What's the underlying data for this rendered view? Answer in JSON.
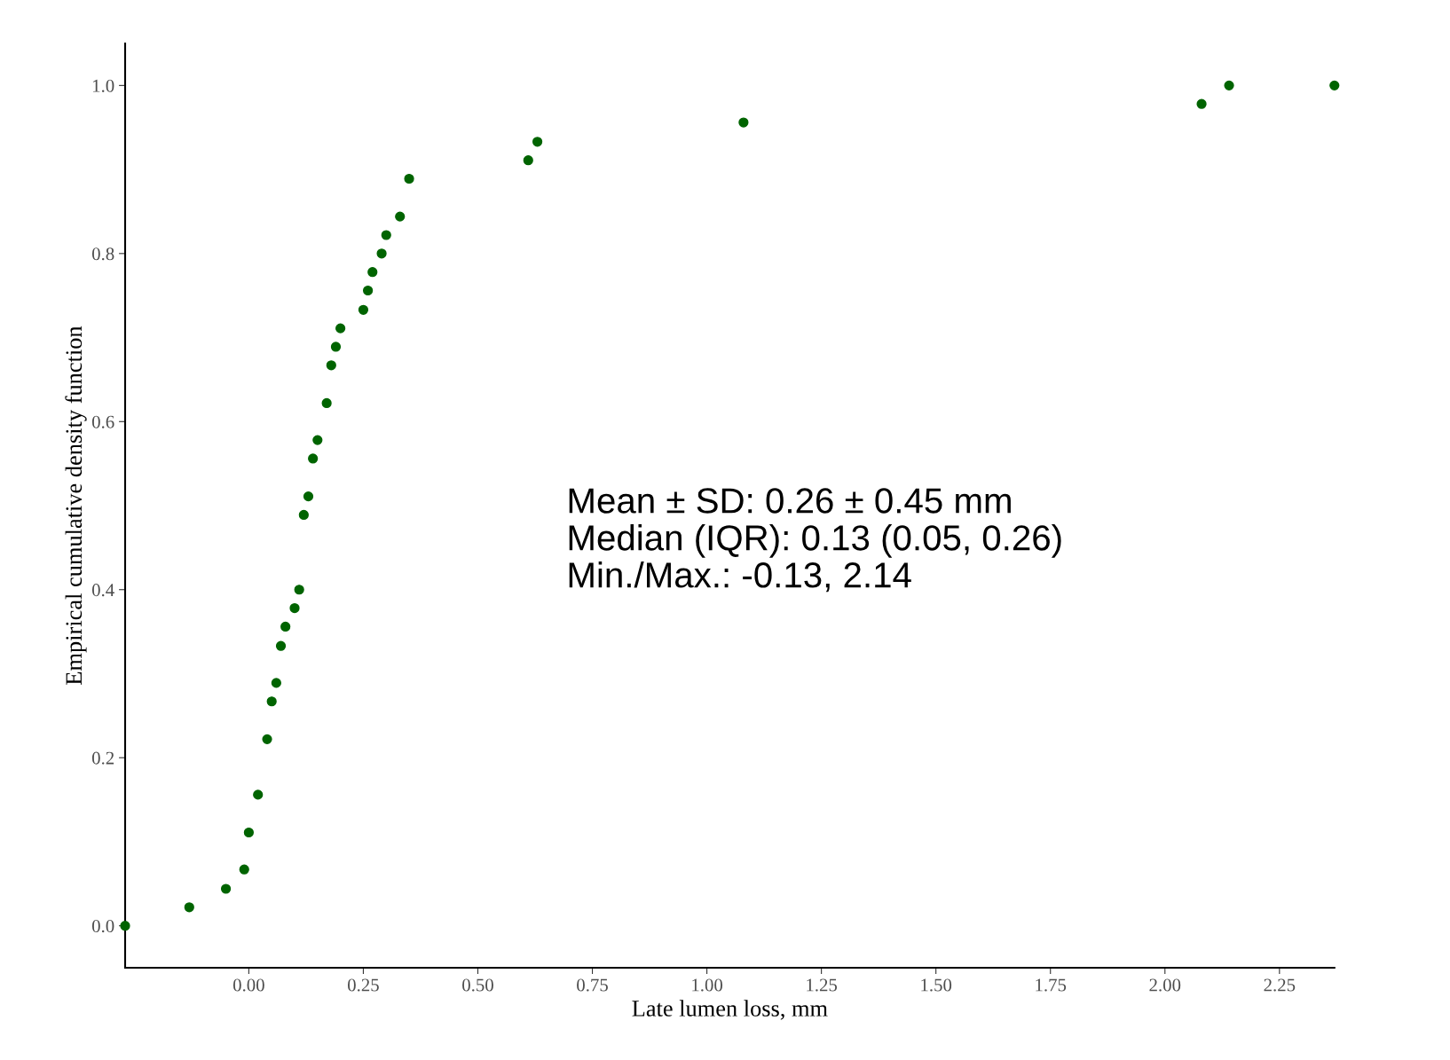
{
  "chart_data": {
    "type": "scatter",
    "xlabel": "Late lumen loss, mm",
    "ylabel": "Empirical cumulative density function",
    "x": [
      -0.27,
      -0.13,
      -0.05,
      -0.01,
      0.0,
      0.02,
      0.04,
      0.05,
      0.06,
      0.07,
      0.08,
      0.1,
      0.11,
      0.12,
      0.13,
      0.14,
      0.15,
      0.17,
      0.18,
      0.19,
      0.2,
      0.25,
      0.26,
      0.27,
      0.29,
      0.3,
      0.33,
      0.35,
      0.61,
      0.63,
      1.08,
      2.08,
      2.14,
      2.37
    ],
    "series": [
      {
        "color": "#006400",
        "values": [
          0.0,
          0.022,
          0.044,
          0.067,
          0.111,
          0.156,
          0.222,
          0.267,
          0.289,
          0.333,
          0.356,
          0.378,
          0.4,
          0.489,
          0.511,
          0.556,
          0.578,
          0.622,
          0.667,
          0.689,
          0.711,
          0.733,
          0.756,
          0.778,
          0.8,
          0.822,
          0.844,
          0.889,
          0.911,
          0.933,
          0.956,
          0.978,
          1.0,
          1.0
        ]
      }
    ],
    "xlim": [
      -0.27,
      2.37
    ],
    "ylim": [
      -0.05,
      1.05
    ],
    "xticks": [
      {
        "value": 0,
        "label": "0.00"
      },
      {
        "value": 0.25,
        "label": "0.25"
      },
      {
        "value": 0.5,
        "label": "0.50"
      },
      {
        "value": 0.75,
        "label": "0.75"
      },
      {
        "value": 1,
        "label": "1.00"
      },
      {
        "value": 1.25,
        "label": "1.25"
      },
      {
        "value": 1.5,
        "label": "1.50"
      },
      {
        "value": 1.75,
        "label": "1.75"
      },
      {
        "value": 2,
        "label": "2.00"
      },
      {
        "value": 2.25,
        "label": "2.25"
      }
    ],
    "yticks": [
      {
        "value": 0,
        "label": "0.0"
      },
      {
        "value": 0.2,
        "label": "0.2"
      },
      {
        "value": 0.4,
        "label": "0.4"
      },
      {
        "value": 0.6,
        "label": "0.6"
      },
      {
        "value": 0.8,
        "label": "0.8"
      },
      {
        "value": 1,
        "label": "1.0"
      }
    ],
    "grid": false,
    "marker": "circle",
    "annotations": [
      "Mean ± SD: 0.26 ± 0.45 mm\nMedian (IQR): 0.13 (0.05, 0.26)\nMin./Max.: -0.13, 2.14"
    ]
  }
}
